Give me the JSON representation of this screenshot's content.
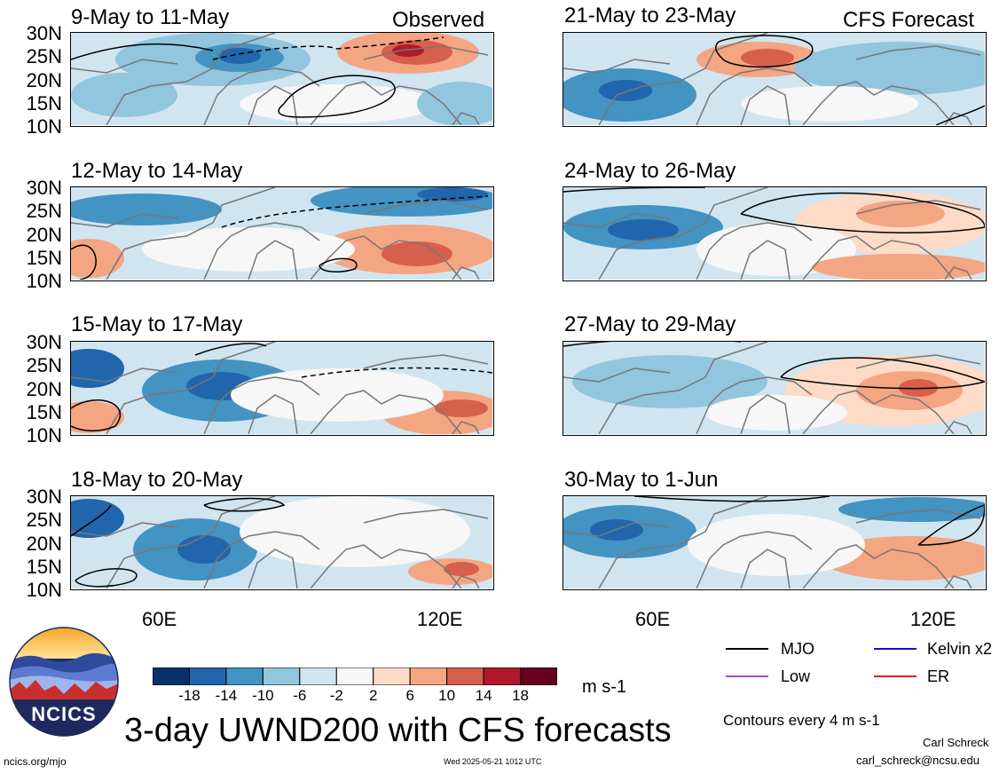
{
  "panels": [
    {
      "id": "p1",
      "title": "9-May to 11-May",
      "tag": "Observed",
      "side": "left",
      "row": 0
    },
    {
      "id": "p2",
      "title": "12-May to 14-May",
      "tag": "",
      "side": "left",
      "row": 1
    },
    {
      "id": "p3",
      "title": "15-May to 17-May",
      "tag": "",
      "side": "left",
      "row": 2
    },
    {
      "id": "p4",
      "title": "18-May to 20-May",
      "tag": "",
      "side": "left",
      "row": 3
    },
    {
      "id": "p5",
      "title": "21-May to 23-May",
      "tag": "CFS Forecast",
      "side": "right",
      "row": 0
    },
    {
      "id": "p6",
      "title": "24-May to 26-May",
      "tag": "",
      "side": "right",
      "row": 1
    },
    {
      "id": "p7",
      "title": "27-May to 29-May",
      "tag": "",
      "side": "right",
      "row": 2
    },
    {
      "id": "p8",
      "title": "30-May to 1-Jun",
      "tag": "",
      "side": "right",
      "row": 3
    }
  ],
  "lat_labels": [
    "30N",
    "25N",
    "20N",
    "15N",
    "10N"
  ],
  "lon_labels": [
    "60E",
    "120E"
  ],
  "colorbar": {
    "colors": [
      "#08306b",
      "#2166ac",
      "#4393c3",
      "#92c5de",
      "#d1e5f0",
      "#f7f7f7",
      "#fddbc7",
      "#f4a582",
      "#d6604d",
      "#b2182b",
      "#67001f"
    ],
    "labels": [
      "-18",
      "-14",
      "-10",
      "-6",
      "-2",
      "2",
      "6",
      "10",
      "14",
      "18"
    ],
    "units": "m s-1"
  },
  "logo": {
    "text": "NCICS"
  },
  "main_title": "3-day UWND200 with CFS forecasts",
  "legend": [
    {
      "label": "MJO",
      "color": "#000000"
    },
    {
      "label": "Kelvin x2",
      "color": "#1010e0"
    },
    {
      "label": "Low",
      "color": "#b040e0"
    },
    {
      "label": "ER",
      "color": "#e02020"
    }
  ],
  "contour_note": "Contours every 4 m s-1",
  "author": "Carl Schreck",
  "email": "carl_schreck@ncsu.edu",
  "site": "ncics.org/mjo",
  "timestamp": "Wed 2025-05-21 1012 UTC"
}
